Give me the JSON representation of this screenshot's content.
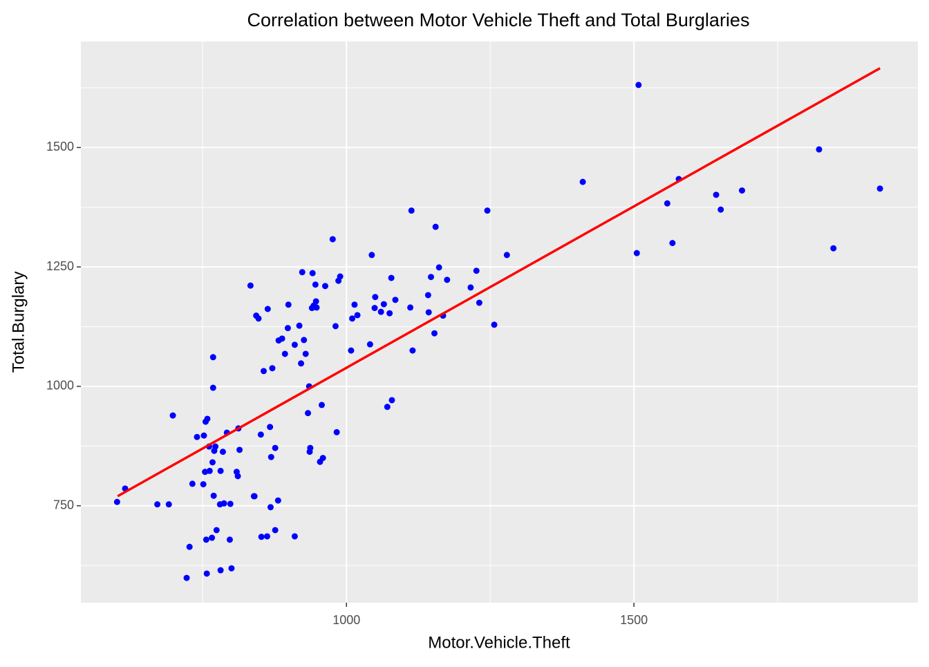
{
  "chart_data": {
    "type": "scatter",
    "title": "Correlation between Motor Vehicle Theft and Total Burglaries",
    "x_label": "Motor.Vehicle.Theft",
    "y_label": "Total.Burglary",
    "xlim": [
      538,
      1994
    ],
    "ylim": [
      547,
      1722
    ],
    "xticks": [
      1000,
      1500
    ],
    "yticks": [
      750,
      1000,
      1250,
      1500
    ],
    "minor_xticks": [
      750,
      1250,
      1750
    ],
    "minor_yticks": [
      625,
      875,
      1125,
      1375,
      1625
    ],
    "grid": true,
    "points": {
      "color": "#0000ff",
      "x": [
        601,
        615,
        671,
        691,
        698,
        722,
        727,
        732,
        740,
        751,
        752,
        754,
        755,
        756,
        757,
        758,
        761,
        762,
        766,
        767,
        768,
        768,
        769,
        770,
        772,
        774,
        780,
        781,
        781,
        785,
        787,
        792,
        797,
        798,
        800,
        809,
        811,
        812,
        814,
        833,
        839,
        840,
        843,
        847,
        851,
        852,
        856,
        862,
        863,
        867,
        868,
        869,
        871,
        876,
        876,
        881,
        882,
        888,
        893,
        898,
        899,
        910,
        910,
        918,
        921,
        923,
        926,
        929,
        933,
        935,
        936,
        937,
        940,
        941,
        943,
        946,
        947,
        948,
        954,
        957,
        959,
        963,
        976,
        981,
        983,
        986,
        989,
        1008,
        1010,
        1014,
        1019,
        1041,
        1044,
        1049,
        1050,
        1060,
        1065,
        1071,
        1075,
        1078,
        1079,
        1085,
        1111,
        1113,
        1115,
        1142,
        1143,
        1147,
        1153,
        1155,
        1161,
        1168,
        1175,
        1216,
        1226,
        1231,
        1245,
        1257,
        1279,
        1411,
        1505,
        1508,
        1558,
        1567,
        1578,
        1643,
        1651,
        1688,
        1822,
        1847,
        1928
      ],
      "y": [
        758,
        786,
        753,
        753,
        939,
        599,
        664,
        796,
        894,
        795,
        897,
        821,
        926,
        679,
        608,
        932,
        874,
        823,
        683,
        841,
        997,
        1061,
        771,
        865,
        874,
        699,
        753,
        615,
        823,
        863,
        755,
        903,
        679,
        754,
        619,
        821,
        812,
        912,
        867,
        1211,
        770,
        770,
        1148,
        1142,
        899,
        685,
        1032,
        686,
        1162,
        915,
        747,
        852,
        1038,
        871,
        699,
        761,
        1096,
        1100,
        1068,
        1122,
        1171,
        1087,
        686,
        1127,
        1048,
        1239,
        1097,
        1068,
        944,
        1000,
        863,
        871,
        1164,
        1237,
        1169,
        1213,
        1178,
        1165,
        842,
        961,
        850,
        1210,
        1308,
        1126,
        904,
        1221,
        1230,
        1075,
        1142,
        1171,
        1149,
        1088,
        1275,
        1164,
        1187,
        1156,
        1172,
        957,
        1153,
        1227,
        971,
        1181,
        1165,
        1368,
        1075,
        1191,
        1155,
        1229,
        1111,
        1334,
        1249,
        1148,
        1223,
        1207,
        1242,
        1175,
        1368,
        1129,
        1275,
        1428,
        1279,
        1631,
        1383,
        1300,
        1434,
        1401,
        1370,
        1410,
        1496,
        1289,
        1414
      ]
    },
    "fit": {
      "color": "#ff0000",
      "x": [
        602,
        1928
      ],
      "y": [
        770,
        1666
      ]
    }
  }
}
